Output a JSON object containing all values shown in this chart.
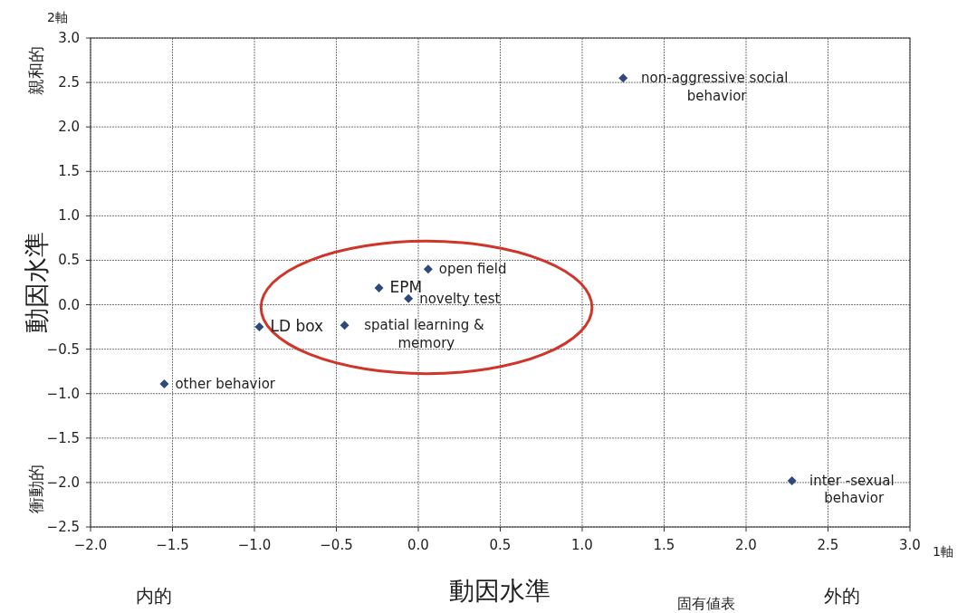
{
  "chart_data": {
    "type": "scatter",
    "xlabel": "動因水準",
    "ylabel": "動因水準",
    "x": [
      1.25,
      0.06,
      -0.24,
      -0.06,
      -0.45,
      -0.97,
      -1.55,
      2.28
    ],
    "values": [
      2.55,
      0.4,
      0.19,
      0.07,
      -0.23,
      -0.25,
      -0.89,
      -1.98
    ],
    "color": "#2e4a7a",
    "marker": "diamond",
    "xlim": [
      -2.0,
      3.0
    ],
    "xticks": [
      {
        "value": -2,
        "label": "−2.0"
      },
      {
        "value": -1.5,
        "label": "−1.5"
      },
      {
        "value": -1,
        "label": "−1.0"
      },
      {
        "value": -0.5,
        "label": "−0.5"
      },
      {
        "value": 0,
        "label": "0.0"
      },
      {
        "value": 0.5,
        "label": "0.5"
      },
      {
        "value": 1,
        "label": "1.0"
      },
      {
        "value": 1.5,
        "label": "1.5"
      },
      {
        "value": 2,
        "label": "2.0"
      },
      {
        "value": 2.5,
        "label": "2.5"
      },
      {
        "value": 3,
        "label": "3.0"
      }
    ],
    "ylim": [
      -2.5,
      3.0
    ],
    "yticks": [
      {
        "value": -2.5,
        "label": "−2.5"
      },
      {
        "value": -2,
        "label": "−2.0"
      },
      {
        "value": -1.5,
        "label": "−1.5"
      },
      {
        "value": -1,
        "label": "−1.0"
      },
      {
        "value": -0.5,
        "label": "−0.5"
      },
      {
        "value": 0,
        "label": "0.0"
      },
      {
        "value": 0.5,
        "label": "0.5"
      },
      {
        "value": 1,
        "label": "1.0"
      },
      {
        "value": 1.5,
        "label": "1.5"
      },
      {
        "value": 2,
        "label": "2.0"
      },
      {
        "value": 2.5,
        "label": "2.5"
      },
      {
        "value": 3,
        "label": "3.0"
      }
    ],
    "grid": true,
    "annotations": [
      "2軸",
      "1軸",
      "親和的",
      "衝動的",
      "内的",
      "外的",
      "固有値表",
      {
        "text": "non-aggressive social behavior",
        "x": 1.25,
        "y": 2.55
      },
      {
        "text": "open field",
        "x": 0.06,
        "y": 0.4
      },
      {
        "text": "EPM",
        "x": -0.24,
        "y": 0.19
      },
      {
        "text": "novelty test",
        "x": -0.06,
        "y": 0.07
      },
      {
        "text": "spatial learning & memory",
        "x": -0.45,
        "y": -0.23
      },
      {
        "text": "LD box",
        "x": -0.97,
        "y": -0.25
      },
      {
        "text": "other behavior",
        "x": -1.55,
        "y": -0.89
      },
      {
        "text": "inter -sexual behavior",
        "x": 2.28,
        "y": -1.98
      }
    ]
  }
}
